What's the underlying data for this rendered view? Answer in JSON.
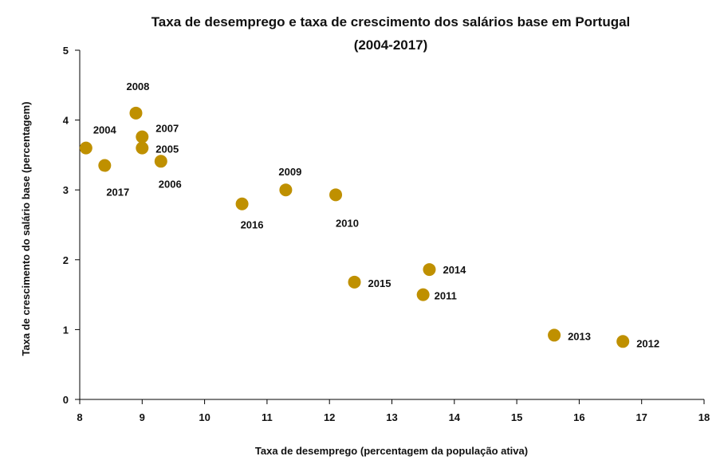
{
  "chart_data": {
    "type": "scatter",
    "title_lines": [
      "Taxa de desemprego e taxa de crescimento dos salários base em Portugal",
      "(2004-2017)"
    ],
    "xlabel": "Taxa de desemprego (percentagem da população ativa)",
    "ylabel": "Taxa de crescimento do salário base (percentagem)",
    "xlim": [
      8,
      18
    ],
    "ylim": [
      0,
      5
    ],
    "xticks": [
      8,
      9,
      10,
      11,
      12,
      13,
      14,
      15,
      16,
      17,
      18
    ],
    "yticks": [
      0,
      1,
      2,
      3,
      4,
      5
    ],
    "grid": false,
    "legend": "none",
    "marker_color": "#BF9000",
    "points": [
      {
        "label": "2004",
        "x": 8.1,
        "y": 3.6
      },
      {
        "label": "2005",
        "x": 9.0,
        "y": 3.6
      },
      {
        "label": "2006",
        "x": 9.3,
        "y": 3.41
      },
      {
        "label": "2007",
        "x": 9.0,
        "y": 3.76
      },
      {
        "label": "2008",
        "x": 8.9,
        "y": 4.1
      },
      {
        "label": "2009",
        "x": 11.3,
        "y": 3.0
      },
      {
        "label": "2010",
        "x": 12.1,
        "y": 2.93
      },
      {
        "label": "2011",
        "x": 13.5,
        "y": 1.5
      },
      {
        "label": "2012",
        "x": 16.7,
        "y": 0.83
      },
      {
        "label": "2013",
        "x": 15.6,
        "y": 0.92
      },
      {
        "label": "2014",
        "x": 13.6,
        "y": 1.86
      },
      {
        "label": "2015",
        "x": 12.4,
        "y": 1.68
      },
      {
        "label": "2016",
        "x": 10.6,
        "y": 2.8
      },
      {
        "label": "2017",
        "x": 8.4,
        "y": 3.35
      }
    ]
  }
}
